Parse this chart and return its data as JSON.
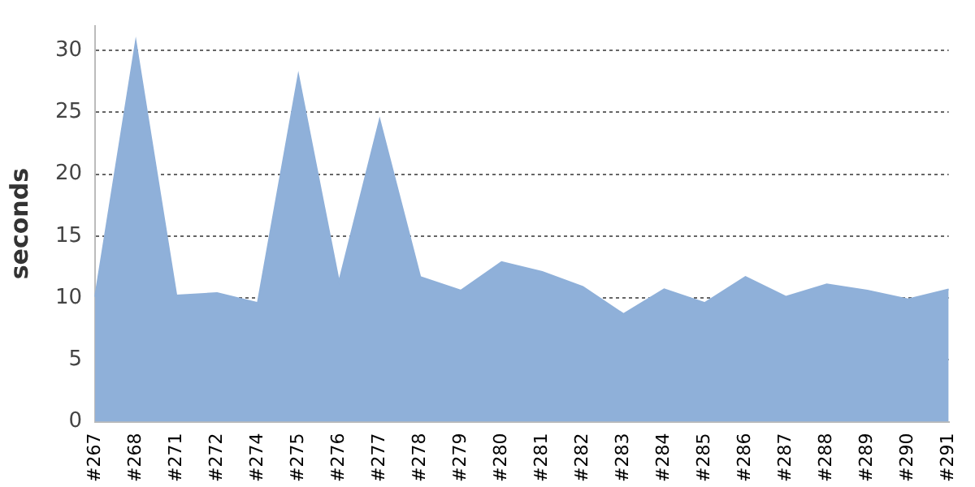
{
  "chart_data": {
    "type": "area",
    "ylabel": "seconds",
    "categories": [
      "#267",
      "#268",
      "#271",
      "#272",
      "#274",
      "#275",
      "#276",
      "#277",
      "#278",
      "#279",
      "#280",
      "#281",
      "#282",
      "#283",
      "#284",
      "#285",
      "#286",
      "#287",
      "#288",
      "#289",
      "#290",
      "#291"
    ],
    "series": [
      {
        "color": "#8fb0d9",
        "values": [
          10.1,
          30.7,
          10.2,
          10.4,
          9.6,
          28.0,
          11.3,
          24.4,
          11.7,
          10.6,
          12.9,
          12.1,
          10.9,
          8.7,
          10.7,
          9.6,
          11.7,
          10.1,
          11.1,
          10.6,
          9.9,
          10.7
        ]
      }
    ],
    "ylim": [
      0,
      32
    ],
    "yticks": [
      0,
      5,
      10,
      15,
      20,
      25,
      30
    ],
    "grid": "y",
    "legend": false
  }
}
